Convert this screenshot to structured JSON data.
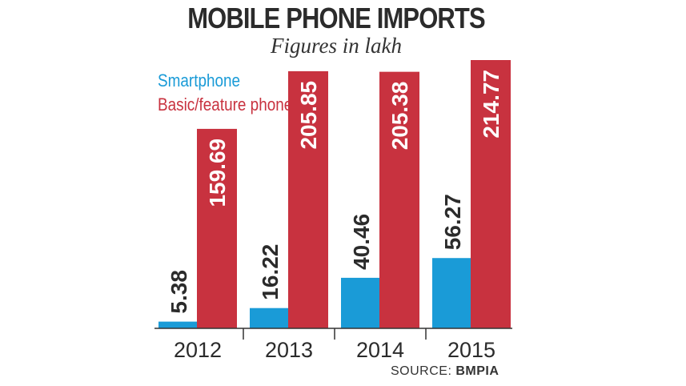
{
  "title": "MOBILE PHONE IMPORTS",
  "subtitle": "Figures in lakh",
  "source_label": "SOURCE:",
  "source_name": "BMPIA",
  "colors": {
    "smartphone": "#1a9bd7",
    "basic": "#c8323f",
    "text": "#2b2b2b",
    "value_on_bar": "#ffffff"
  },
  "chart_data": {
    "type": "bar",
    "title": "MOBILE PHONE IMPORTS",
    "subtitle": "Figures in lakh",
    "categories": [
      "2012",
      "2013",
      "2014",
      "2015"
    ],
    "series": [
      {
        "name": "Smartphone",
        "values": [
          5.38,
          16.22,
          40.46,
          56.27
        ]
      },
      {
        "name": "Basic/feature phone",
        "values": [
          159.69,
          205.85,
          205.38,
          214.77
        ]
      }
    ],
    "value_labels": [
      [
        "5.38",
        "16.22",
        "40.46",
        "56.27"
      ],
      [
        "159.69",
        "205.85",
        "205.38",
        "214.77"
      ]
    ],
    "xlabel": "",
    "ylabel": "",
    "ylim": [
      0,
      214.77
    ],
    "grid": false,
    "legend": "top-left"
  }
}
